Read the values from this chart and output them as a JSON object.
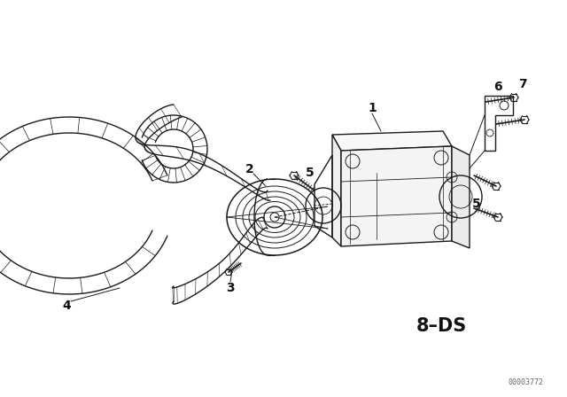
{
  "bg_color": "#ffffff",
  "line_color": "#1a1a1a",
  "label_color": "#111111",
  "watermark": "00003772",
  "label_8ds": "8–DS",
  "figsize": [
    6.4,
    4.48
  ],
  "dpi": 100
}
